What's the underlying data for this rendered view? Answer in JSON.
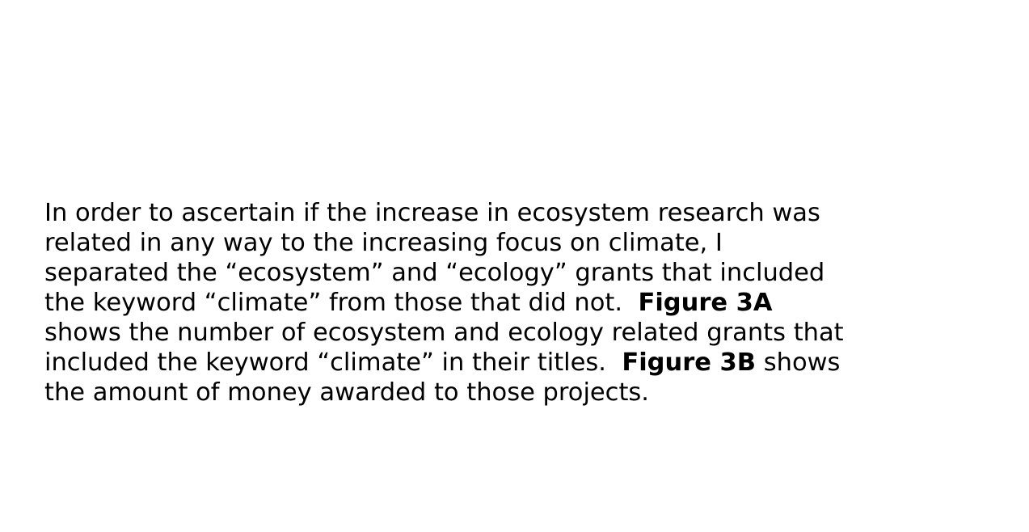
{
  "paragraph": {
    "lines": [
      [
        {
          "text": "In order to ascertain if the increase in ecosystem research was"
        }
      ],
      [
        {
          "text": "related in any way to the increasing focus on climate, I"
        }
      ],
      [
        {
          "text": "separated the “ecosystem” and “ecology” grants that included"
        }
      ],
      [
        {
          "text": "the keyword “climate” from those that did not.  "
        },
        {
          "text": "Figure 3A",
          "bold": true
        }
      ],
      [
        {
          "text": "shows the number of ecosystem and ecology related grants that"
        }
      ],
      [
        {
          "text": "included the keyword “climate” in their titles.  "
        },
        {
          "text": "Figure 3B",
          "bold": true
        },
        {
          "text": " shows"
        }
      ],
      [
        {
          "text": "the amount of money awarded to those projects."
        }
      ]
    ]
  }
}
